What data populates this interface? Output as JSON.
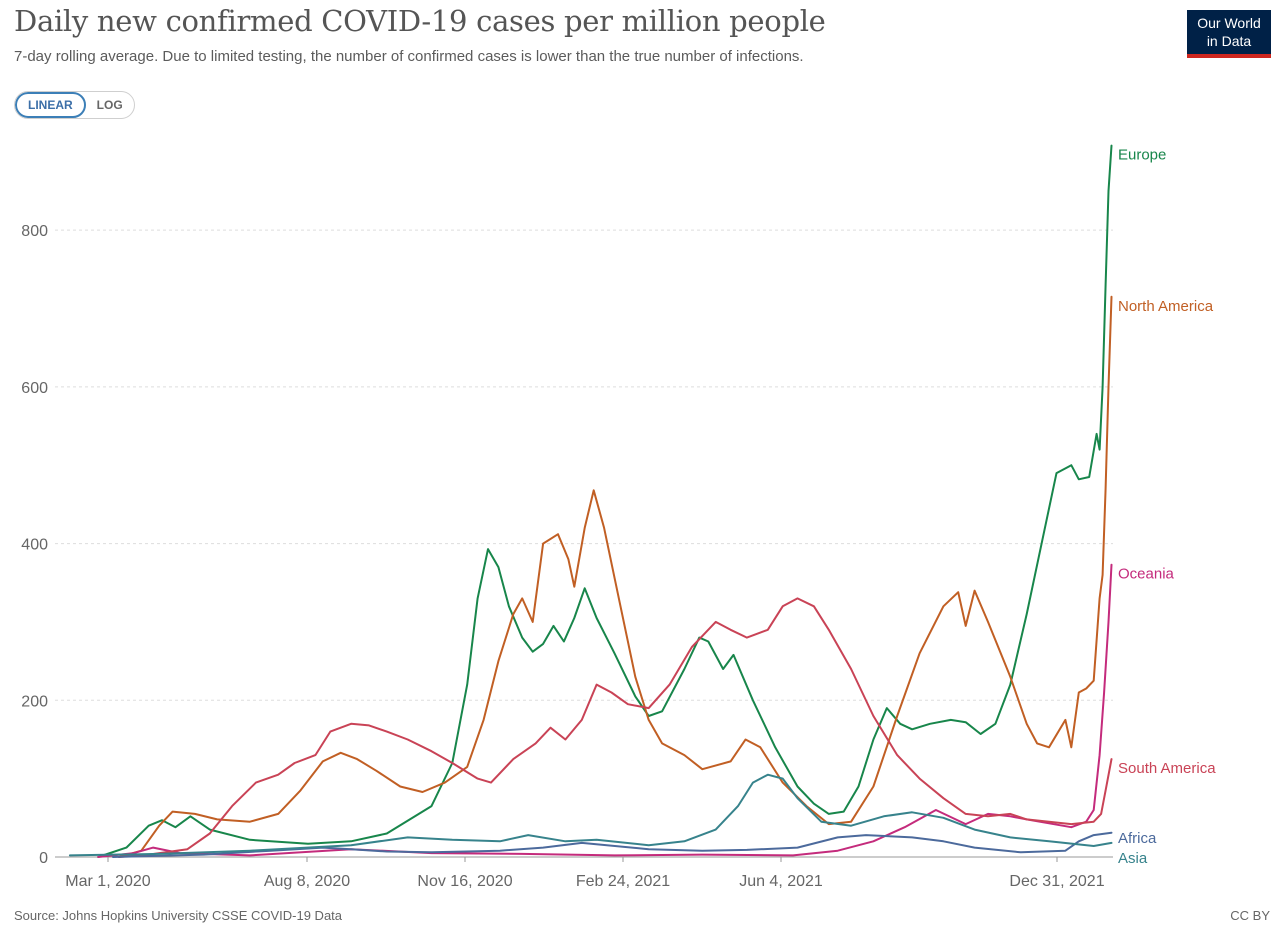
{
  "header": {
    "title": "Daily new confirmed COVID-19 cases per million people",
    "subtitle": "7-day rolling average. Due to limited testing, the number of confirmed cases is lower than the true number of infections."
  },
  "logo": {
    "line1": "Our World",
    "line2": "in Data"
  },
  "scale_toggle": {
    "linear_label": "LINEAR",
    "log_label": "LOG",
    "selected": "LINEAR"
  },
  "footer": {
    "source": "Source: Johns Hopkins University CSSE COVID-19 Data",
    "license": "CC BY"
  },
  "chart_data": {
    "type": "line",
    "ylim": [
      0,
      910
    ],
    "yticks": [
      0,
      200,
      400,
      600,
      800
    ],
    "grid": true,
    "legend": "labels at line ends (right)",
    "x_ticks": [
      "Mar 1, 2020",
      "Aug 8, 2020",
      "Nov 16, 2020",
      "Feb 24, 2021",
      "Jun 4, 2021",
      "Dec 31, 2021"
    ],
    "x_start": "2020-01-22",
    "x_end": "2022-01-02",
    "series": [
      {
        "name": "Europe",
        "color": "#18864b",
        "points": [
          [
            "2020-02-20",
            0
          ],
          [
            "2020-03-10",
            12
          ],
          [
            "2020-03-25",
            40
          ],
          [
            "2020-04-03",
            47
          ],
          [
            "2020-04-12",
            38
          ],
          [
            "2020-04-22",
            52
          ],
          [
            "2020-05-05",
            35
          ],
          [
            "2020-06-01",
            22
          ],
          [
            "2020-07-10",
            17
          ],
          [
            "2020-08-08",
            20
          ],
          [
            "2020-09-01",
            30
          ],
          [
            "2020-10-01",
            65
          ],
          [
            "2020-10-15",
            120
          ],
          [
            "2020-10-25",
            220
          ],
          [
            "2020-11-01",
            330
          ],
          [
            "2020-11-08",
            393
          ],
          [
            "2020-11-15",
            370
          ],
          [
            "2020-11-22",
            320
          ],
          [
            "2020-12-01",
            280
          ],
          [
            "2020-12-08",
            262
          ],
          [
            "2020-12-15",
            272
          ],
          [
            "2020-12-22",
            295
          ],
          [
            "2020-12-29",
            275
          ],
          [
            "2021-01-05",
            305
          ],
          [
            "2021-01-12",
            343
          ],
          [
            "2021-01-20",
            305
          ],
          [
            "2021-02-01",
            260
          ],
          [
            "2021-02-15",
            205
          ],
          [
            "2021-02-24",
            180
          ],
          [
            "2021-03-05",
            186
          ],
          [
            "2021-03-20",
            240
          ],
          [
            "2021-03-30",
            280
          ],
          [
            "2021-04-05",
            275
          ],
          [
            "2021-04-15",
            240
          ],
          [
            "2021-04-22",
            258
          ],
          [
            "2021-05-05",
            200
          ],
          [
            "2021-05-20",
            140
          ],
          [
            "2021-06-04",
            90
          ],
          [
            "2021-06-15",
            68
          ],
          [
            "2021-06-25",
            55
          ],
          [
            "2021-07-05",
            58
          ],
          [
            "2021-07-15",
            90
          ],
          [
            "2021-07-25",
            150
          ],
          [
            "2021-08-03",
            190
          ],
          [
            "2021-08-12",
            170
          ],
          [
            "2021-08-20",
            163
          ],
          [
            "2021-09-01",
            170
          ],
          [
            "2021-09-15",
            175
          ],
          [
            "2021-09-25",
            172
          ],
          [
            "2021-10-05",
            157
          ],
          [
            "2021-10-15",
            170
          ],
          [
            "2021-10-25",
            220
          ],
          [
            "2021-11-05",
            310
          ],
          [
            "2021-11-15",
            400
          ],
          [
            "2021-11-25",
            490
          ],
          [
            "2021-12-05",
            500
          ],
          [
            "2021-12-10",
            482
          ],
          [
            "2021-12-17",
            485
          ],
          [
            "2021-12-22",
            540
          ],
          [
            "2021-12-24",
            520
          ],
          [
            "2021-12-26",
            600
          ],
          [
            "2021-12-28",
            730
          ],
          [
            "2021-12-30",
            850
          ],
          [
            "2022-01-01",
            908
          ]
        ]
      },
      {
        "name": "North America",
        "color": "#c15f24",
        "points": [
          [
            "2020-03-05",
            0
          ],
          [
            "2020-03-20",
            8
          ],
          [
            "2020-04-01",
            40
          ],
          [
            "2020-04-10",
            58
          ],
          [
            "2020-04-25",
            55
          ],
          [
            "2020-05-10",
            48
          ],
          [
            "2020-06-01",
            45
          ],
          [
            "2020-06-20",
            55
          ],
          [
            "2020-07-05",
            85
          ],
          [
            "2020-07-20",
            122
          ],
          [
            "2020-08-01",
            133
          ],
          [
            "2020-08-12",
            125
          ],
          [
            "2020-08-25",
            110
          ],
          [
            "2020-09-10",
            90
          ],
          [
            "2020-09-25",
            83
          ],
          [
            "2020-10-10",
            95
          ],
          [
            "2020-10-25",
            115
          ],
          [
            "2020-11-05",
            175
          ],
          [
            "2020-11-15",
            250
          ],
          [
            "2020-11-25",
            310
          ],
          [
            "2020-12-01",
            330
          ],
          [
            "2020-12-08",
            300
          ],
          [
            "2020-12-15",
            400
          ],
          [
            "2020-12-25",
            412
          ],
          [
            "2021-01-01",
            380
          ],
          [
            "2021-01-05",
            345
          ],
          [
            "2021-01-12",
            420
          ],
          [
            "2021-01-18",
            468
          ],
          [
            "2021-01-25",
            420
          ],
          [
            "2021-02-05",
            320
          ],
          [
            "2021-02-15",
            230
          ],
          [
            "2021-02-24",
            175
          ],
          [
            "2021-03-05",
            145
          ],
          [
            "2021-03-20",
            130
          ],
          [
            "2021-04-01",
            112
          ],
          [
            "2021-04-20",
            122
          ],
          [
            "2021-04-30",
            150
          ],
          [
            "2021-05-10",
            140
          ],
          [
            "2021-05-25",
            95
          ],
          [
            "2021-06-10",
            65
          ],
          [
            "2021-06-25",
            42
          ],
          [
            "2021-07-10",
            45
          ],
          [
            "2021-07-25",
            90
          ],
          [
            "2021-08-10",
            180
          ],
          [
            "2021-08-25",
            260
          ],
          [
            "2021-09-10",
            320
          ],
          [
            "2021-09-20",
            338
          ],
          [
            "2021-09-25",
            295
          ],
          [
            "2021-10-01",
            340
          ],
          [
            "2021-10-10",
            300
          ],
          [
            "2021-10-25",
            230
          ],
          [
            "2021-11-05",
            170
          ],
          [
            "2021-11-12",
            145
          ],
          [
            "2021-11-20",
            140
          ],
          [
            "2021-12-01",
            175
          ],
          [
            "2021-12-05",
            140
          ],
          [
            "2021-12-10",
            210
          ],
          [
            "2021-12-15",
            215
          ],
          [
            "2021-12-20",
            225
          ],
          [
            "2021-12-24",
            330
          ],
          [
            "2021-12-26",
            360
          ],
          [
            "2021-12-28",
            470
          ],
          [
            "2021-12-30",
            600
          ],
          [
            "2022-01-01",
            715
          ]
        ]
      },
      {
        "name": "Oceania",
        "color": "#c42b7c",
        "points": [
          [
            "2020-02-20",
            0
          ],
          [
            "2020-03-15",
            5
          ],
          [
            "2020-03-28",
            12
          ],
          [
            "2020-04-15",
            5
          ],
          [
            "2020-06-01",
            2
          ],
          [
            "2020-08-08",
            10
          ],
          [
            "2020-10-01",
            5
          ],
          [
            "2020-12-01",
            4
          ],
          [
            "2021-02-01",
            2
          ],
          [
            "2021-04-01",
            3
          ],
          [
            "2021-06-01",
            2
          ],
          [
            "2021-07-01",
            8
          ],
          [
            "2021-07-25",
            20
          ],
          [
            "2021-08-15",
            38
          ],
          [
            "2021-09-05",
            60
          ],
          [
            "2021-09-25",
            42
          ],
          [
            "2021-10-10",
            55
          ],
          [
            "2021-10-25",
            52
          ],
          [
            "2021-11-05",
            48
          ],
          [
            "2021-11-20",
            43
          ],
          [
            "2021-12-05",
            38
          ],
          [
            "2021-12-15",
            45
          ],
          [
            "2021-12-20",
            60
          ],
          [
            "2021-12-24",
            130
          ],
          [
            "2021-12-27",
            210
          ],
          [
            "2021-12-30",
            300
          ],
          [
            "2022-01-01",
            373
          ]
        ]
      },
      {
        "name": "South America",
        "color": "#c94356",
        "points": [
          [
            "2020-03-05",
            0
          ],
          [
            "2020-03-25",
            3
          ],
          [
            "2020-04-20",
            10
          ],
          [
            "2020-05-05",
            30
          ],
          [
            "2020-05-20",
            65
          ],
          [
            "2020-06-05",
            95
          ],
          [
            "2020-06-20",
            105
          ],
          [
            "2020-07-01",
            120
          ],
          [
            "2020-07-15",
            130
          ],
          [
            "2020-07-25",
            160
          ],
          [
            "2020-08-08",
            170
          ],
          [
            "2020-08-20",
            168
          ],
          [
            "2020-09-01",
            160
          ],
          [
            "2020-09-15",
            150
          ],
          [
            "2020-10-01",
            135
          ],
          [
            "2020-10-15",
            120
          ],
          [
            "2020-11-01",
            100
          ],
          [
            "2020-11-10",
            95
          ],
          [
            "2020-11-25",
            125
          ],
          [
            "2020-12-10",
            145
          ],
          [
            "2020-12-20",
            165
          ],
          [
            "2020-12-30",
            150
          ],
          [
            "2021-01-10",
            175
          ],
          [
            "2021-01-20",
            220
          ],
          [
            "2021-01-30",
            210
          ],
          [
            "2021-02-10",
            195
          ],
          [
            "2021-02-24",
            190
          ],
          [
            "2021-03-10",
            220
          ],
          [
            "2021-03-25",
            268
          ],
          [
            "2021-04-10",
            300
          ],
          [
            "2021-04-20",
            290
          ],
          [
            "2021-05-01",
            280
          ],
          [
            "2021-05-15",
            290
          ],
          [
            "2021-05-25",
            320
          ],
          [
            "2021-06-04",
            330
          ],
          [
            "2021-06-15",
            320
          ],
          [
            "2021-06-25",
            290
          ],
          [
            "2021-07-10",
            240
          ],
          [
            "2021-07-25",
            180
          ],
          [
            "2021-08-10",
            130
          ],
          [
            "2021-08-25",
            100
          ],
          [
            "2021-09-10",
            75
          ],
          [
            "2021-09-25",
            55
          ],
          [
            "2021-10-10",
            52
          ],
          [
            "2021-10-25",
            55
          ],
          [
            "2021-11-05",
            48
          ],
          [
            "2021-11-20",
            45
          ],
          [
            "2021-12-05",
            42
          ],
          [
            "2021-12-20",
            45
          ],
          [
            "2021-12-25",
            55
          ],
          [
            "2021-12-28",
            85
          ],
          [
            "2022-01-01",
            125
          ]
        ]
      },
      {
        "name": "Africa",
        "color": "#4c6a9c",
        "points": [
          [
            "2020-03-01",
            0
          ],
          [
            "2020-05-01",
            3
          ],
          [
            "2020-06-15",
            8
          ],
          [
            "2020-07-20",
            12
          ],
          [
            "2020-08-08",
            10
          ],
          [
            "2020-09-01",
            7
          ],
          [
            "2020-10-01",
            6
          ],
          [
            "2020-11-16",
            8
          ],
          [
            "2020-12-15",
            12
          ],
          [
            "2021-01-10",
            18
          ],
          [
            "2021-02-24",
            10
          ],
          [
            "2021-04-01",
            8
          ],
          [
            "2021-05-01",
            9
          ],
          [
            "2021-06-04",
            12
          ],
          [
            "2021-07-01",
            25
          ],
          [
            "2021-07-20",
            28
          ],
          [
            "2021-08-20",
            25
          ],
          [
            "2021-09-10",
            20
          ],
          [
            "2021-10-01",
            12
          ],
          [
            "2021-11-01",
            6
          ],
          [
            "2021-12-01",
            8
          ],
          [
            "2021-12-10",
            20
          ],
          [
            "2021-12-20",
            28
          ],
          [
            "2022-01-01",
            31
          ]
        ]
      },
      {
        "name": "Asia",
        "color": "#37838c",
        "points": [
          [
            "2020-02-01",
            2
          ],
          [
            "2020-04-01",
            4
          ],
          [
            "2020-06-01",
            8
          ],
          [
            "2020-08-08",
            15
          ],
          [
            "2020-09-15",
            25
          ],
          [
            "2020-10-15",
            22
          ],
          [
            "2020-11-16",
            20
          ],
          [
            "2020-12-05",
            28
          ],
          [
            "2020-12-30",
            20
          ],
          [
            "2021-01-20",
            22
          ],
          [
            "2021-02-24",
            15
          ],
          [
            "2021-03-20",
            20
          ],
          [
            "2021-04-10",
            35
          ],
          [
            "2021-04-25",
            65
          ],
          [
            "2021-05-05",
            95
          ],
          [
            "2021-05-15",
            105
          ],
          [
            "2021-05-25",
            100
          ],
          [
            "2021-06-04",
            75
          ],
          [
            "2021-06-20",
            45
          ],
          [
            "2021-07-10",
            40
          ],
          [
            "2021-08-01",
            52
          ],
          [
            "2021-08-20",
            57
          ],
          [
            "2021-09-10",
            50
          ],
          [
            "2021-10-01",
            35
          ],
          [
            "2021-10-25",
            25
          ],
          [
            "2021-11-20",
            20
          ],
          [
            "2021-12-20",
            14
          ],
          [
            "2022-01-01",
            18
          ]
        ]
      }
    ],
    "end_labels": [
      {
        "name": "Europe",
        "y": 908
      },
      {
        "name": "North America",
        "y": 715
      },
      {
        "name": "Oceania",
        "y": 373
      },
      {
        "name": "South America",
        "y": 125
      },
      {
        "name": "Africa",
        "y": 36
      },
      {
        "name": "Asia",
        "y": 10
      }
    ]
  }
}
